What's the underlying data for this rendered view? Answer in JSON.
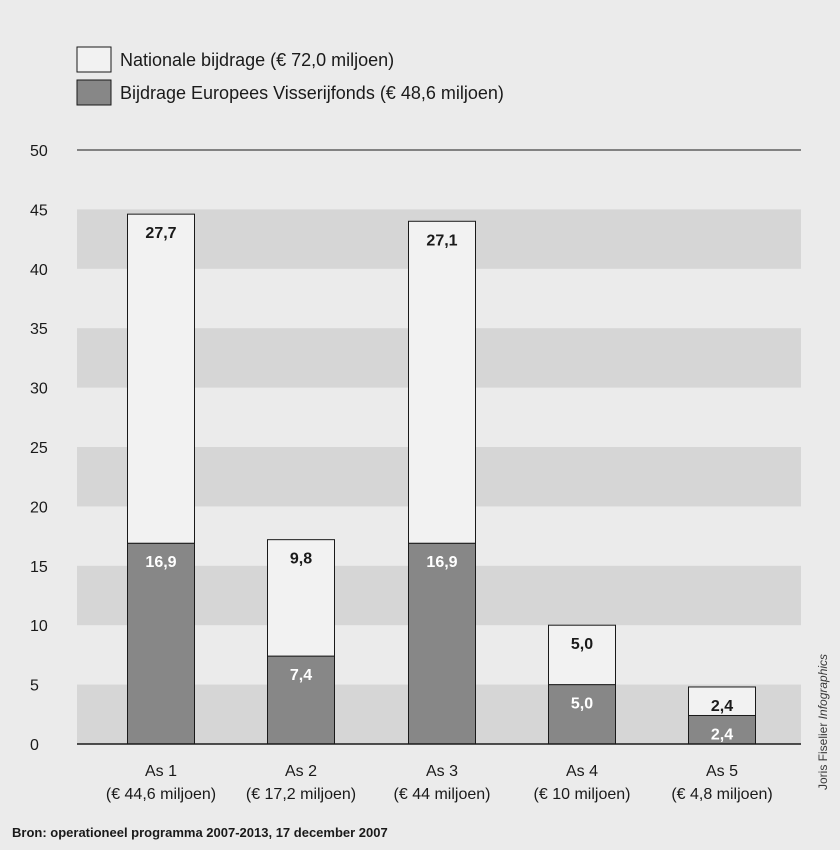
{
  "chart_data": {
    "type": "bar",
    "stacked": true,
    "categories": [
      "As 1",
      "As 2",
      "As 3",
      "As 4",
      "As 5"
    ],
    "category_sublabels": [
      "(€ 44,6 miljoen)",
      "(€ 17,2 miljoen)",
      "(€ 44 miljoen)",
      "(€ 10 miljoen)",
      "(€ 4,8 miljoen)"
    ],
    "series": [
      {
        "name": "Bijdrage Europees Visserijfonds (€ 48,6 miljoen)",
        "values": [
          16.9,
          7.4,
          16.9,
          5.0,
          2.4
        ],
        "labels": [
          "16,9",
          "7,4",
          "16,9",
          "5,0",
          "2,4"
        ],
        "color": "#878787"
      },
      {
        "name": "Nationale bijdrage (€ 72,0 miljoen)",
        "values": [
          27.7,
          9.8,
          27.1,
          5.0,
          2.4
        ],
        "labels": [
          "27,7",
          "9,8",
          "27,1",
          "5,0",
          "2,4"
        ],
        "color": "#f2f2f2"
      }
    ],
    "ylim": [
      0,
      50
    ],
    "yticks": [
      0,
      5,
      10,
      15,
      20,
      25,
      30,
      35,
      40,
      45,
      50
    ],
    "grid": "alternating horizontal bands",
    "legend_position": "top-left",
    "source": "Bron: operationeel programma 2007-2013, 17 december 2007",
    "credit": "Joris Fiselier",
    "credit_italic": "Infographics"
  },
  "colors": {
    "background": "#ebebeb",
    "band": "#d6d6d6",
    "eu": "#878787",
    "national": "#f2f2f2",
    "stroke": "#1a1a1a"
  }
}
